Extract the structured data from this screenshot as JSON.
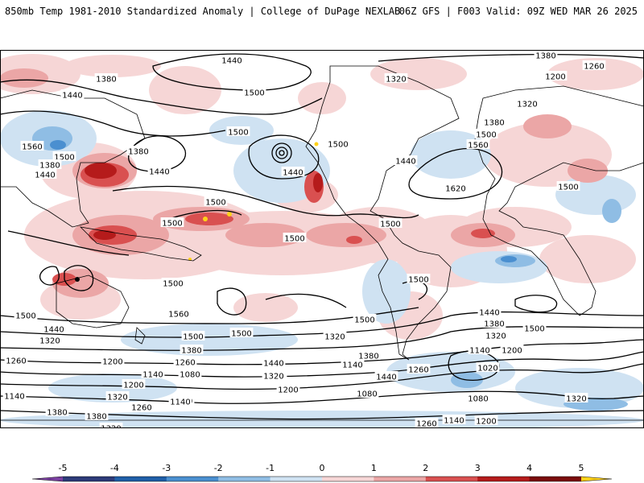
{
  "header": {
    "left": "850mb Temp 1981-2010 Standardized Anomaly | College of DuPage NEXLAB",
    "right": "06Z GFS | F003 Valid: 09Z WED MAR 26 2025"
  },
  "map": {
    "field": "850mb Temp 1981-2010 Standardized Anomaly",
    "projection": "global cylindrical",
    "anomaly_colors": {
      "neg5": "#2c3a78",
      "neg4": "#1f5fa8",
      "neg3": "#4a8fd0",
      "neg2": "#8fbde4",
      "neg1": "#cfe2f2",
      "zero": "#ffffff",
      "pos1": "#f6d6d6",
      "pos2": "#eba6a6",
      "pos3": "#d95050",
      "pos4": "#b51b1b",
      "pos5": "#7a0a0a",
      "extreme": "#ffd21a"
    },
    "contour_labels": [
      {
        "text": "1440",
        "id": "l1"
      },
      {
        "text": "1380",
        "id": "l2"
      },
      {
        "text": "1260",
        "id": "l3"
      },
      {
        "text": "1200",
        "id": "l4"
      },
      {
        "text": "1320",
        "id": "l5"
      },
      {
        "text": "1380",
        "id": "l6"
      },
      {
        "text": "1440",
        "id": "l7"
      },
      {
        "text": "1500",
        "id": "l8"
      },
      {
        "text": "1500",
        "id": "l9"
      },
      {
        "text": "1380",
        "id": "l10"
      },
      {
        "text": "1440",
        "id": "l11"
      },
      {
        "text": "1560",
        "id": "l12"
      },
      {
        "text": "1500",
        "id": "l13"
      },
      {
        "text": "1380",
        "id": "l14"
      },
      {
        "text": "1440",
        "id": "l15"
      },
      {
        "text": "1440",
        "id": "l16"
      },
      {
        "text": "1500",
        "id": "l17"
      },
      {
        "text": "1440",
        "id": "l18"
      },
      {
        "text": "1320",
        "id": "l19"
      },
      {
        "text": "1500",
        "id": "l20"
      },
      {
        "text": "1380",
        "id": "l21"
      },
      {
        "text": "1560",
        "id": "l22"
      },
      {
        "text": "1620",
        "id": "l23"
      },
      {
        "text": "1500",
        "id": "l24"
      },
      {
        "text": "1500",
        "id": "l25"
      },
      {
        "text": "1500",
        "id": "l26"
      },
      {
        "text": "1500",
        "id": "l27"
      },
      {
        "text": "1500",
        "id": "l28"
      },
      {
        "text": "1500",
        "id": "l29"
      },
      {
        "text": "1500",
        "id": "l30"
      },
      {
        "text": "1560",
        "id": "l31"
      },
      {
        "text": "1500",
        "id": "l32"
      },
      {
        "text": "1500",
        "id": "l33"
      },
      {
        "text": "1440",
        "id": "l34"
      },
      {
        "text": "1380",
        "id": "l35"
      },
      {
        "text": "1320",
        "id": "l36"
      },
      {
        "text": "1500",
        "id": "l37"
      },
      {
        "text": "1440",
        "id": "l38"
      },
      {
        "text": "1500",
        "id": "l39"
      },
      {
        "text": "1320",
        "id": "l40"
      },
      {
        "text": "1500",
        "id": "l41"
      },
      {
        "text": "1380",
        "id": "l42"
      },
      {
        "text": "1260",
        "id": "l43"
      },
      {
        "text": "1200",
        "id": "l44"
      },
      {
        "text": "1260",
        "id": "l45"
      },
      {
        "text": "1140",
        "id": "l46"
      },
      {
        "text": "1080",
        "id": "l47"
      },
      {
        "text": "1200",
        "id": "l48"
      },
      {
        "text": "1140",
        "id": "l49"
      },
      {
        "text": "1320",
        "id": "l50"
      },
      {
        "text": "1260",
        "id": "l51"
      },
      {
        "text": "1380",
        "id": "l52"
      },
      {
        "text": "1200",
        "id": "l53"
      },
      {
        "text": "1140",
        "id": "l54"
      },
      {
        "text": "1320",
        "id": "l55"
      },
      {
        "text": "1440",
        "id": "l56"
      },
      {
        "text": "1320",
        "id": "l57"
      },
      {
        "text": "1200",
        "id": "l58"
      },
      {
        "text": "1140",
        "id": "l59"
      },
      {
        "text": "1260",
        "id": "l60"
      },
      {
        "text": "1080",
        "id": "l61"
      },
      {
        "text": "1140",
        "id": "l62"
      },
      {
        "text": "1200",
        "id": "l63"
      },
      {
        "text": "1020",
        "id": "l64"
      },
      {
        "text": "1080",
        "id": "l65"
      },
      {
        "text": "1320",
        "id": "l66"
      },
      {
        "text": "1260",
        "id": "l67"
      },
      {
        "text": "1200",
        "id": "l68"
      },
      {
        "text": "1140",
        "id": "l69"
      },
      {
        "text": "1320",
        "id": "l70"
      },
      {
        "text": "1380",
        "id": "l71"
      },
      {
        "text": "1440",
        "id": "l72"
      },
      {
        "text": "1380",
        "id": "l73"
      },
      {
        "text": "1320",
        "id": "l74"
      }
    ]
  },
  "colorbar": {
    "ticks": [
      "-5",
      "-4",
      "-3",
      "-2",
      "-1",
      "0",
      "1",
      "2",
      "3",
      "4",
      "5"
    ]
  }
}
